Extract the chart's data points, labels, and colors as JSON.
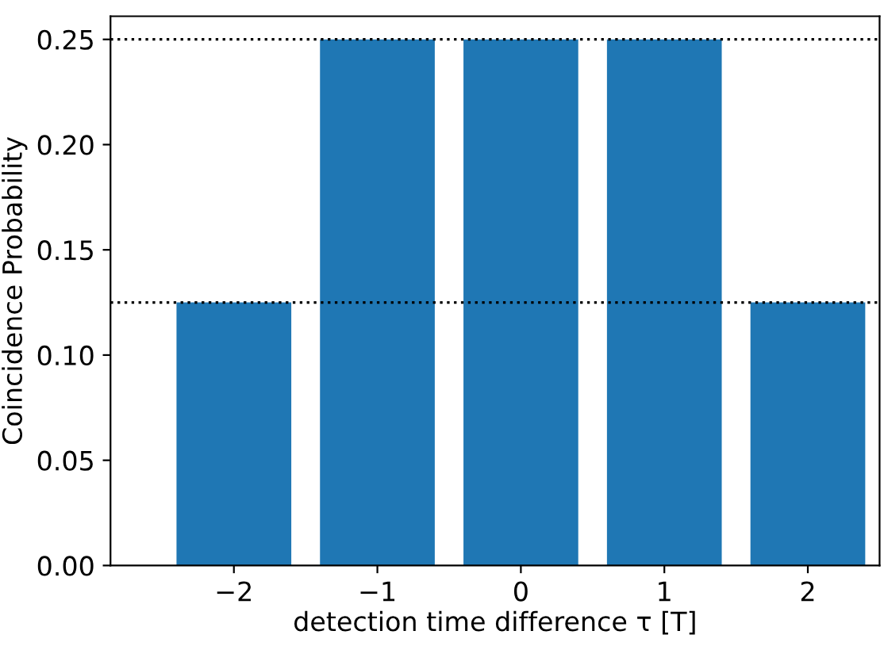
{
  "chart_data": {
    "type": "bar",
    "xlabel": "detection time difference τ [T]",
    "ylabel": "Coincidence Probability",
    "x": [
      -2,
      -1,
      0,
      1,
      2
    ],
    "values": [
      0.125,
      0.25,
      0.25,
      0.25,
      0.125
    ],
    "color": "#1f77b4",
    "xlim": [
      -2.86,
      2.5
    ],
    "xticks": [
      {
        "value": -2,
        "label": "−2"
      },
      {
        "value": -1,
        "label": "−1"
      },
      0,
      1,
      2
    ],
    "ylim": [
      0,
      0.261
    ],
    "yticks": [
      {
        "value": 0,
        "label": "0.00"
      },
      {
        "value": 0.05,
        "label": "0.05"
      },
      {
        "value": 0.1,
        "label": "0.10"
      },
      {
        "value": 0.15,
        "label": "0.15"
      },
      {
        "value": 0.2,
        "label": "0.20"
      },
      {
        "value": 0.25,
        "label": "0.25"
      }
    ],
    "ref_lines": [
      {
        "axis": "y",
        "value": 0.25,
        "color": "#000000",
        "line_style": "dotted"
      },
      {
        "axis": "y",
        "value": 0.125,
        "color": "#000000",
        "line_style": "dotted"
      }
    ],
    "grid": false
  }
}
